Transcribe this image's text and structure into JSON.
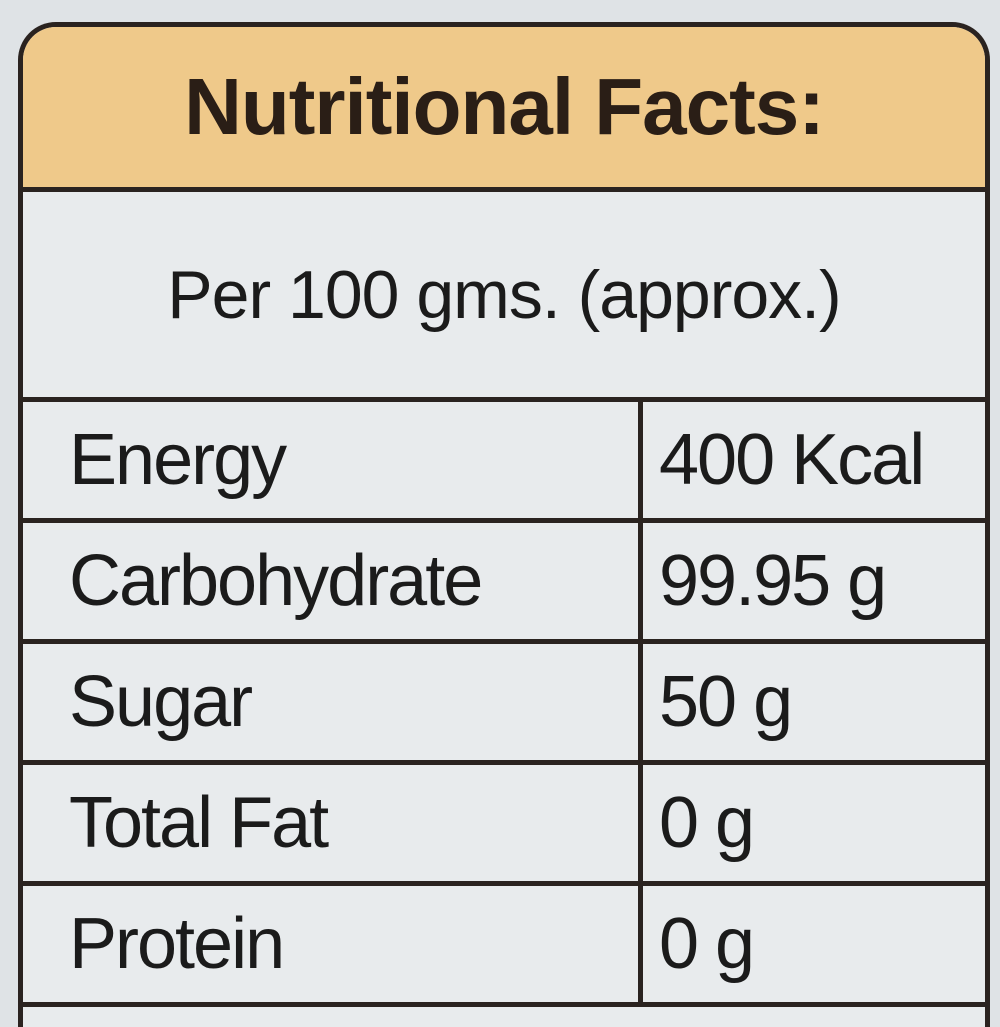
{
  "header": {
    "title": "Nutritional Facts:",
    "subtitle": "Per 100 gms. (approx.)"
  },
  "table": {
    "rows": [
      [
        "Energy",
        "400 Kcal"
      ],
      [
        "Carbohydrate",
        "99.95 g"
      ],
      [
        "Sugar",
        "50 g"
      ],
      [
        "Total Fat",
        "0 g"
      ],
      [
        "Protein",
        "0 g"
      ]
    ]
  }
}
